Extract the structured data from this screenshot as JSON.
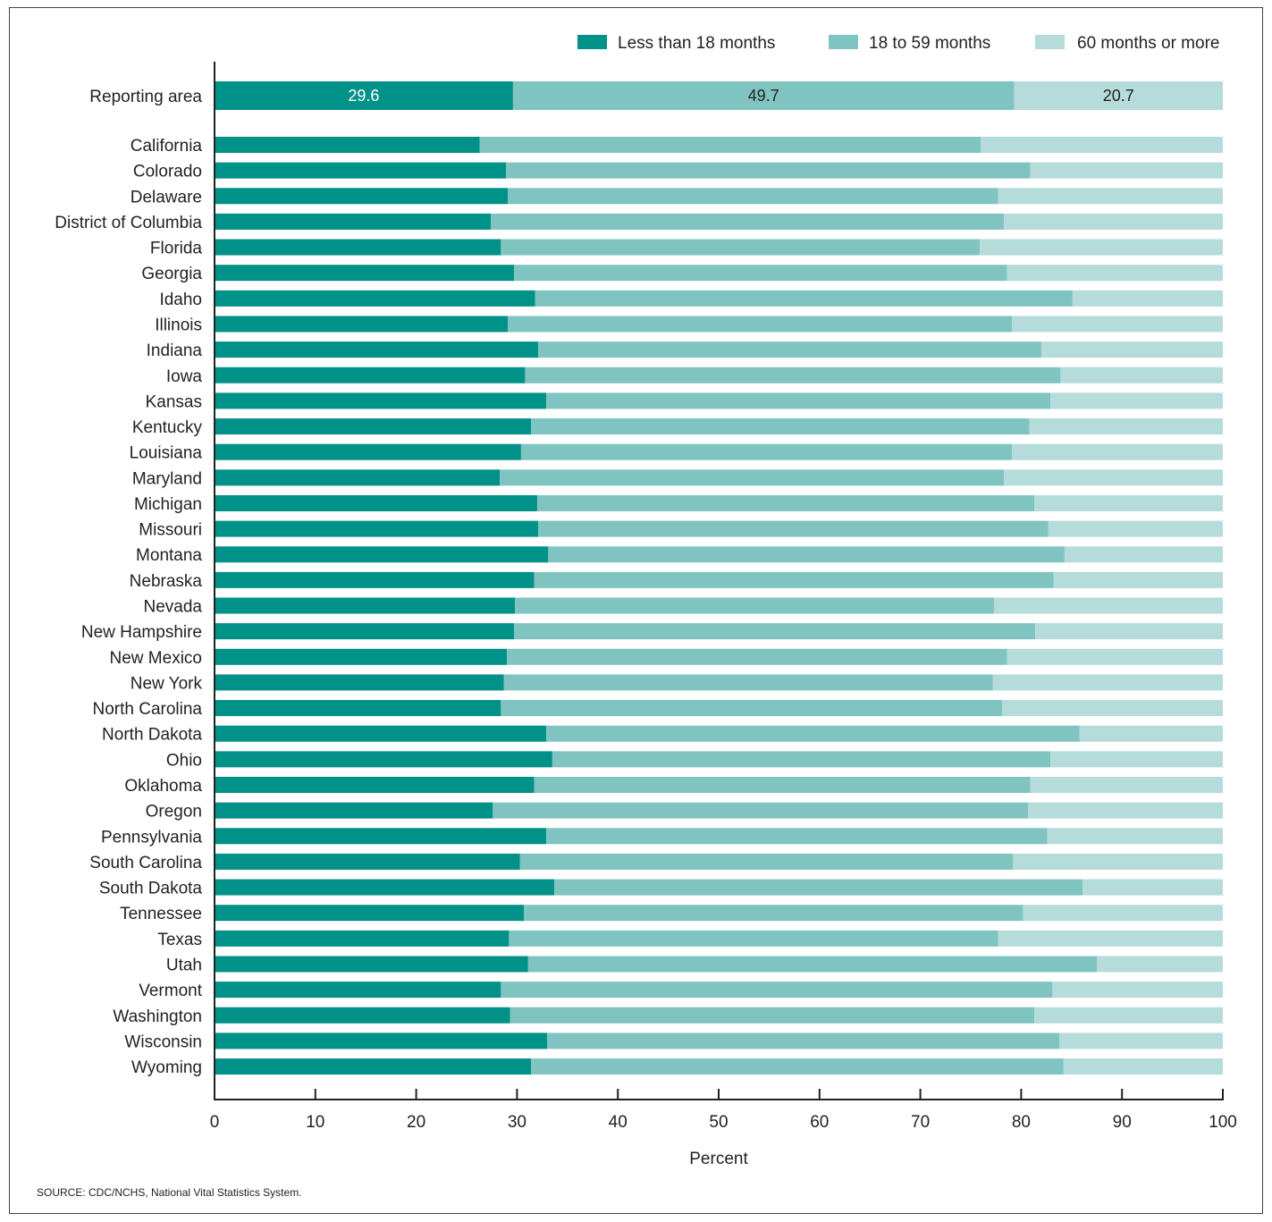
{
  "chart_data": {
    "type": "bar",
    "orientation": "horizontal",
    "stacked": true,
    "xlabel": "Percent",
    "xlim": [
      0,
      100
    ],
    "xticks": [
      "0",
      "10",
      "20",
      "30",
      "40",
      "50",
      "60",
      "70",
      "80",
      "90",
      "100"
    ],
    "grid": false,
    "legend_position": "top-right",
    "colors": [
      "#009188",
      "#80c4c2",
      "#b5dbda"
    ],
    "series": [
      {
        "name": "Less than 18 months"
      },
      {
        "name": "18 to 59 months"
      },
      {
        "name": "60 months or more"
      }
    ],
    "categories": [
      "Reporting area",
      "California",
      "Colorado",
      "Delaware",
      "District of Columbia",
      "Florida",
      "Georgia",
      "Idaho",
      "Illinois",
      "Indiana",
      "Iowa",
      "Kansas",
      "Kentucky",
      "Louisiana",
      "Maryland",
      "Michigan",
      "Missouri",
      "Montana",
      "Nebraska",
      "Nevada",
      "New Hampshire",
      "New Mexico",
      "New York",
      "North Carolina",
      "North Dakota",
      "Ohio",
      "Oklahoma",
      "Oregon",
      "Pennsylvania",
      "South Carolina",
      "South Dakota",
      "Tennessee",
      "Texas",
      "Utah",
      "Vermont",
      "Washington",
      "Wisconsin",
      "Wyoming"
    ],
    "values": [
      [
        29.6,
        49.7,
        20.7
      ],
      [
        26.3,
        49.7,
        24.0
      ],
      [
        28.9,
        52.0,
        19.1
      ],
      [
        29.1,
        48.6,
        22.3
      ],
      [
        27.4,
        50.9,
        21.7
      ],
      [
        28.4,
        47.5,
        24.1
      ],
      [
        29.7,
        48.9,
        21.4
      ],
      [
        31.8,
        53.3,
        14.9
      ],
      [
        29.1,
        50.0,
        20.9
      ],
      [
        32.1,
        49.9,
        18.0
      ],
      [
        30.8,
        53.1,
        16.1
      ],
      [
        32.9,
        50.0,
        17.1
      ],
      [
        31.4,
        49.4,
        19.2
      ],
      [
        30.4,
        48.7,
        20.9
      ],
      [
        28.3,
        50.0,
        21.7
      ],
      [
        32.0,
        49.3,
        18.7
      ],
      [
        32.1,
        50.6,
        17.3
      ],
      [
        33.1,
        51.2,
        15.7
      ],
      [
        31.7,
        51.5,
        16.8
      ],
      [
        29.8,
        47.5,
        22.7
      ],
      [
        29.7,
        51.7,
        18.6
      ],
      [
        29.0,
        49.6,
        21.4
      ],
      [
        28.7,
        48.5,
        22.8
      ],
      [
        28.4,
        49.7,
        21.9
      ],
      [
        32.9,
        52.9,
        14.2
      ],
      [
        33.5,
        49.4,
        17.1
      ],
      [
        31.7,
        49.2,
        19.1
      ],
      [
        27.6,
        53.1,
        19.3
      ],
      [
        32.9,
        49.7,
        17.4
      ],
      [
        30.3,
        48.9,
        20.8
      ],
      [
        33.7,
        52.4,
        13.9
      ],
      [
        30.7,
        49.5,
        19.8
      ],
      [
        29.2,
        48.5,
        22.3
      ],
      [
        31.1,
        56.4,
        12.5
      ],
      [
        28.4,
        54.7,
        16.9
      ],
      [
        29.3,
        52.0,
        18.7
      ],
      [
        33.0,
        50.8,
        16.2
      ],
      [
        31.4,
        52.8,
        15.8
      ]
    ],
    "data_labels": [
      "29.6",
      "49.7",
      "20.7"
    ]
  },
  "footer": {
    "source": "SOURCE: CDC/NCHS, National Vital Statistics System."
  }
}
